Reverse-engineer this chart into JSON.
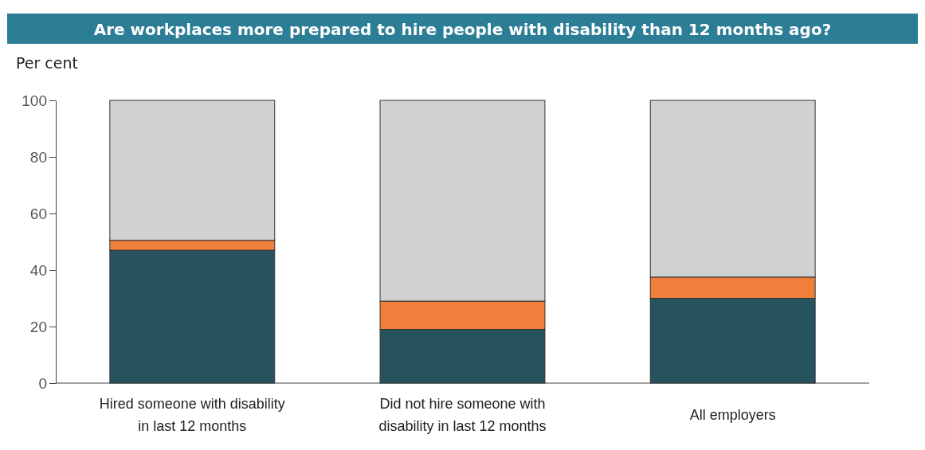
{
  "chart_data": {
    "type": "bar",
    "title": "Are workplaces more prepared to hire people with disability than 12 months ago?",
    "ylabel": "Per cent",
    "categories": [
      "Hired someone with disability in last 12 months",
      "Did not hire someone with disability in last 12 months",
      "All employers"
    ],
    "stacked": true,
    "series": [
      {
        "color": "#27535f",
        "values": [
          47,
          19,
          30
        ]
      },
      {
        "color": "#f07f3c",
        "values": [
          3.5,
          10,
          7.5
        ]
      },
      {
        "color": "#d0d2d1",
        "values": [
          49.5,
          71,
          62.5
        ]
      }
    ],
    "ylim": [
      0,
      100
    ],
    "yticks": [
      0,
      20,
      40,
      60,
      80,
      100
    ],
    "grid": false
  }
}
